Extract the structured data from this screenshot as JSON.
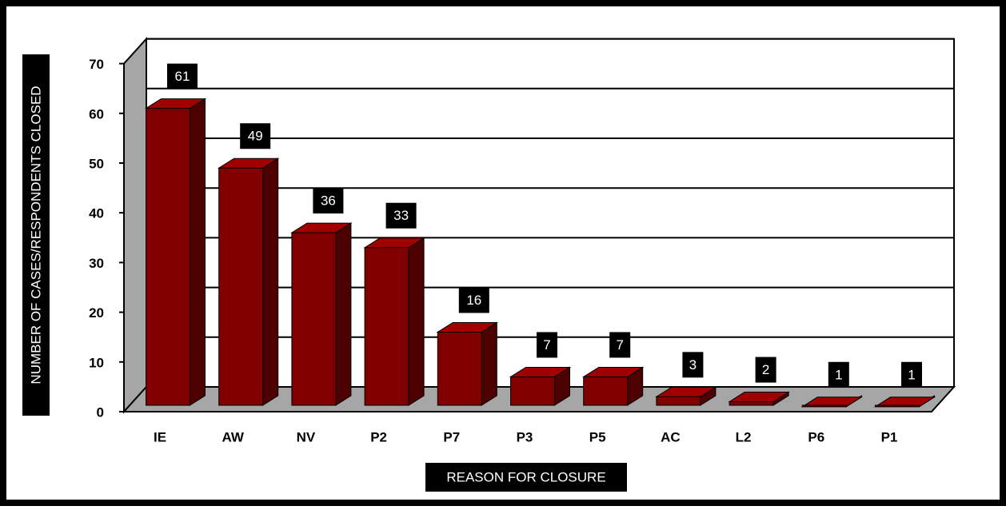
{
  "chart_data": {
    "type": "bar",
    "x_label": "REASON FOR CLOSURE",
    "y_label": "NUMBER OF CASES/RESPONDENTS CLOSED",
    "categories": [
      "IE",
      "AW",
      "NV",
      "P2",
      "P7",
      "P3",
      "P5",
      "AC",
      "L2",
      "P6",
      "P1"
    ],
    "values": [
      61,
      49,
      36,
      33,
      16,
      7,
      7,
      3,
      2,
      1,
      1
    ],
    "color": "#800000",
    "ylim": [
      0,
      70
    ],
    "yticks": [
      0,
      10,
      20,
      30,
      40,
      50,
      60,
      70
    ],
    "grid": true
  }
}
